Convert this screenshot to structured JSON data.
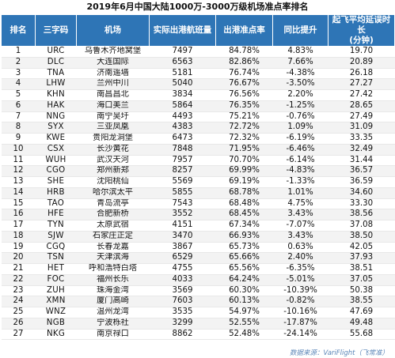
{
  "title": "2019年6月中国大陆1000万-3000万级机场准点率排名",
  "headers": {
    "rank": "排名",
    "code": "三字码",
    "airport": "机场",
    "throughput": "实际出港航班量",
    "ontime": "出港准点率",
    "yoy": "同比提升",
    "delay_line1": "起飞平均延误时长",
    "delay_line2": "(分钟)"
  },
  "rows": [
    {
      "rank": "1",
      "code": "URC",
      "airport": "乌鲁木齐地窝堡",
      "throughput": "7497",
      "ontime": "84.78%",
      "yoy": "4.83%",
      "delay": "19.70"
    },
    {
      "rank": "2",
      "code": "DLC",
      "airport": "大连国际",
      "throughput": "6563",
      "ontime": "82.86%",
      "yoy": "7.66%",
      "delay": "20.89"
    },
    {
      "rank": "3",
      "code": "TNA",
      "airport": "济南遥墙",
      "throughput": "5181",
      "ontime": "76.74%",
      "yoy": "-4.38%",
      "delay": "26.18"
    },
    {
      "rank": "4",
      "code": "LHW",
      "airport": "兰州中川",
      "throughput": "5040",
      "ontime": "76.67%",
      "yoy": "-3.50%",
      "delay": "27.27"
    },
    {
      "rank": "5",
      "code": "KHN",
      "airport": "南昌昌北",
      "throughput": "3834",
      "ontime": "76.56%",
      "yoy": "2.20%",
      "delay": "27.42"
    },
    {
      "rank": "6",
      "code": "HAK",
      "airport": "海口美兰",
      "throughput": "5864",
      "ontime": "76.35%",
      "yoy": "-1.25%",
      "delay": "28.65"
    },
    {
      "rank": "7",
      "code": "NNG",
      "airport": "南宁吴圩",
      "throughput": "4493",
      "ontime": "75.21%",
      "yoy": "-0.76%",
      "delay": "27.49"
    },
    {
      "rank": "8",
      "code": "SYX",
      "airport": "三亚凤凰",
      "throughput": "4383",
      "ontime": "72.72%",
      "yoy": "1.09%",
      "delay": "31.09"
    },
    {
      "rank": "9",
      "code": "KWE",
      "airport": "贵阳龙洞堡",
      "throughput": "6473",
      "ontime": "72.32%",
      "yoy": "-6.19%",
      "delay": "33.35"
    },
    {
      "rank": "10",
      "code": "CSX",
      "airport": "长沙黄花",
      "throughput": "7848",
      "ontime": "71.95%",
      "yoy": "-6.46%",
      "delay": "32.49"
    },
    {
      "rank": "11",
      "code": "WUH",
      "airport": "武汉天河",
      "throughput": "7957",
      "ontime": "70.70%",
      "yoy": "-6.14%",
      "delay": "31.44"
    },
    {
      "rank": "12",
      "code": "CGO",
      "airport": "郑州新郑",
      "throughput": "8257",
      "ontime": "69.99%",
      "yoy": "-4.83%",
      "delay": "36.57"
    },
    {
      "rank": "13",
      "code": "SHE",
      "airport": "沈阳桃仙",
      "throughput": "5569",
      "ontime": "69.19%",
      "yoy": "-1.33%",
      "delay": "36.59"
    },
    {
      "rank": "14",
      "code": "HRB",
      "airport": "哈尔滨太平",
      "throughput": "5855",
      "ontime": "68.78%",
      "yoy": "1.01%",
      "delay": "34.60"
    },
    {
      "rank": "15",
      "code": "TAO",
      "airport": "青岛流亭",
      "throughput": "7543",
      "ontime": "68.48%",
      "yoy": "4.75%",
      "delay": "33.30"
    },
    {
      "rank": "16",
      "code": "HFE",
      "airport": "合肥新桥",
      "throughput": "3552",
      "ontime": "68.45%",
      "yoy": "3.43%",
      "delay": "38.56"
    },
    {
      "rank": "17",
      "code": "TYN",
      "airport": "太原武宿",
      "throughput": "4151",
      "ontime": "67.34%",
      "yoy": "-7.07%",
      "delay": "37.08"
    },
    {
      "rank": "18",
      "code": "SJW",
      "airport": "石家庄正定",
      "throughput": "3470",
      "ontime": "66.93%",
      "yoy": "3.43%",
      "delay": "38.50"
    },
    {
      "rank": "19",
      "code": "CGQ",
      "airport": "长春龙嘉",
      "throughput": "3867",
      "ontime": "65.73%",
      "yoy": "0.63%",
      "delay": "42.05"
    },
    {
      "rank": "20",
      "code": "TSN",
      "airport": "天津滨海",
      "throughput": "6529",
      "ontime": "65.66%",
      "yoy": "2.40%",
      "delay": "37.93"
    },
    {
      "rank": "21",
      "code": "HET",
      "airport": "呼和浩特白塔",
      "throughput": "4755",
      "ontime": "65.56%",
      "yoy": "-6.35%",
      "delay": "38.51"
    },
    {
      "rank": "22",
      "code": "FOC",
      "airport": "福州长乐",
      "throughput": "4033",
      "ontime": "64.24%",
      "yoy": "-5.01%",
      "delay": "37.05"
    },
    {
      "rank": "23",
      "code": "ZUH",
      "airport": "珠海金湾",
      "throughput": "3569",
      "ontime": "60.30%",
      "yoy": "-10.39%",
      "delay": "50.38"
    },
    {
      "rank": "24",
      "code": "XMN",
      "airport": "厦门高崎",
      "throughput": "7603",
      "ontime": "60.13%",
      "yoy": "-0.82%",
      "delay": "38.55"
    },
    {
      "rank": "25",
      "code": "WNZ",
      "airport": "温州龙湾",
      "throughput": "3535",
      "ontime": "54.97%",
      "yoy": "-10.16%",
      "delay": "47.69"
    },
    {
      "rank": "26",
      "code": "NGB",
      "airport": "宁波栎社",
      "throughput": "3299",
      "ontime": "52.55%",
      "yoy": "-17.87%",
      "delay": "49.48"
    },
    {
      "rank": "27",
      "code": "NKG",
      "airport": "南京禄口",
      "throughput": "8862",
      "ontime": "52.48%",
      "yoy": "-24.14%",
      "delay": "55.68"
    }
  ],
  "source": "数据来源：VariFlight（飞常准）",
  "colors": {
    "header_bg": "#2e75b6",
    "header_text": "#ffffff",
    "stripe": "#f3f3f3"
  }
}
